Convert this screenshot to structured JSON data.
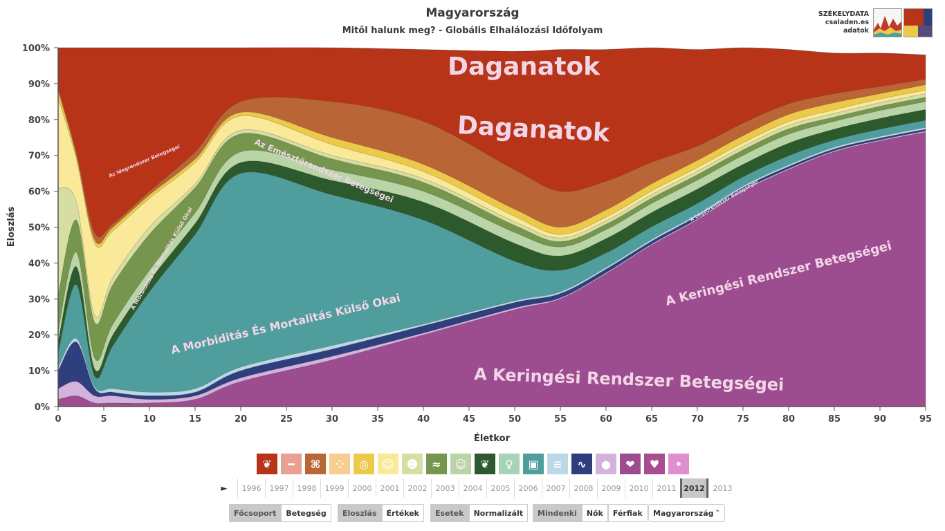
{
  "title": "Magyarország",
  "subtitle": "Mitől halunk meg? - Globális Elhalálozási Időfolyam",
  "logo": {
    "line1": "SZÉKELYDATA",
    "line2": "csaladen.es",
    "line3": "adatok"
  },
  "chart_data": {
    "type": "area",
    "stacked": true,
    "normalized": true,
    "xlabel": "Életkor",
    "ylabel": "Eloszlás",
    "xlim": [
      0,
      95
    ],
    "ylim": [
      0,
      100
    ],
    "xticks": [
      0,
      5,
      10,
      15,
      20,
      25,
      30,
      35,
      40,
      45,
      50,
      55,
      60,
      65,
      70,
      75,
      80,
      85,
      90,
      95
    ],
    "yticks": [
      "0%",
      "10%",
      "20%",
      "30%",
      "40%",
      "50%",
      "60%",
      "70%",
      "80%",
      "90%",
      "100%"
    ],
    "x": [
      0,
      2,
      4,
      6,
      10,
      15,
      20,
      30,
      40,
      50,
      55,
      60,
      65,
      70,
      75,
      80,
      85,
      90,
      95
    ],
    "series": [
      {
        "color": "#9c4d8f",
        "values": [
          2,
          3,
          1,
          1,
          1,
          2,
          7,
          13,
          20,
          27,
          30,
          37,
          45,
          52,
          60,
          66,
          71,
          74,
          76.5
        ]
      },
      {
        "color": "#d3b3dc",
        "values": [
          3,
          4,
          2,
          2,
          1,
          1,
          1,
          1,
          0.5,
          0.5,
          0.3,
          0.3,
          0.3,
          0.3,
          0.3,
          0.3,
          0.3,
          0.3,
          0.3
        ]
      },
      {
        "color": "#2f3e7c",
        "values": [
          5,
          11,
          2,
          1,
          1,
          1,
          2,
          2,
          2,
          1.5,
          1.2,
          1.0,
          0.8,
          0.8,
          0.7,
          0.6,
          0.5,
          0.5,
          0.5
        ]
      },
      {
        "color": "#bcd8e6",
        "values": [
          1,
          1,
          0.5,
          1,
          1,
          1,
          1,
          1,
          0.5,
          0.5,
          0.5,
          0.5,
          0.5,
          0.5,
          0.5,
          0.5,
          0.5,
          0.5,
          0.5
        ]
      },
      {
        "color": "#4f9e9d",
        "values": [
          4,
          15,
          3,
          12,
          28,
          43,
          54,
          42,
          29,
          11,
          6,
          4,
          3.5,
          3,
          2.5,
          2.5,
          2,
          2,
          2
        ]
      },
      {
        "color": "#2d5a2c",
        "values": [
          3,
          5,
          2,
          3,
          3,
          3,
          3,
          4,
          5,
          5,
          4,
          4,
          4,
          4,
          3.5,
          3.5,
          3,
          3,
          3
        ]
      },
      {
        "color": "#b9d4a7",
        "values": [
          3,
          4,
          3,
          3,
          3,
          3,
          3,
          3,
          3,
          3,
          2.5,
          2.5,
          2.5,
          2.5,
          2.5,
          2.5,
          2.2,
          2.2,
          2.2
        ]
      },
      {
        "color": "#75964c",
        "values": [
          10,
          9,
          10,
          11,
          10,
          7,
          5,
          3,
          2.5,
          2,
          1.5,
          1.5,
          1.5,
          1.5,
          1.5,
          1.5,
          1.2,
          1.2,
          1.2
        ]
      },
      {
        "color": "#d6dea3",
        "values": [
          30,
          5,
          2,
          2,
          2,
          1,
          1,
          1,
          1,
          1,
          1,
          1,
          1,
          1,
          1,
          1,
          1,
          1,
          1
        ]
      },
      {
        "color": "#fbe99a",
        "values": [
          25,
          12,
          20,
          13,
          8,
          6,
          4,
          3,
          2,
          1.5,
          1,
          1,
          1,
          1,
          1,
          1,
          1,
          1,
          1
        ]
      },
      {
        "color": "#edc94a",
        "values": [
          2,
          1,
          1,
          1,
          1,
          1,
          1,
          2,
          2,
          2,
          2,
          2,
          2,
          2,
          2,
          2,
          2,
          1.5,
          1.5
        ]
      },
      {
        "color": "#ba6535",
        "values": [
          1,
          1,
          2,
          1,
          1,
          2,
          3,
          10,
          12,
          11,
          10,
          8,
          6,
          4,
          3.5,
          3,
          2.5,
          2,
          1.5
        ]
      },
      {
        "color": "#b83418",
        "values": [
          11,
          29,
          51.5,
          49,
          40,
          29,
          15,
          15,
          20,
          33,
          39.5,
          36.7,
          31.9,
          26.9,
          21.0,
          15.1,
          11.3,
          9.3,
          6.8
        ]
      },
      {
        "color": "#e8a0a0",
        "values": [
          0,
          0,
          0,
          0,
          0,
          0,
          0.5,
          0,
          0,
          0,
          0,
          0,
          0,
          0,
          0,
          0,
          0,
          0,
          0
        ]
      }
    ],
    "annotations": [
      {
        "text": "Daganatok",
        "x": 51,
        "y": 92.5,
        "size": 36,
        "angle": 0
      },
      {
        "text": "Daganatok",
        "x": 52,
        "y": 75,
        "size": 36,
        "angle": 3
      },
      {
        "text": "A Keringési Rendszer Betegségei",
        "x": 62.5,
        "y": 6,
        "size": 24,
        "angle": 2
      },
      {
        "text": "A Keringési Rendszer Betegségei",
        "x": 79,
        "y": 36,
        "size": 18,
        "angle": -14
      },
      {
        "text": "A Morbiditás És Mortalitás Külső Okai",
        "x": 25,
        "y": 22,
        "size": 16,
        "angle": -13
      },
      {
        "text": "Az Emésztőrendszer Betegségei",
        "x": 29,
        "y": 65,
        "size": 12,
        "angle": 23
      },
      {
        "text": "A Morbiditás És Mortalitás Külső Okai",
        "x": 11.5,
        "y": 41,
        "size": 8,
        "angle": -60
      },
      {
        "text": "Az Idegrendszer Betegségei",
        "x": 9.5,
        "y": 68,
        "size": 7,
        "angle": -23
      },
      {
        "text": "A Légzőrendszer Betegségei",
        "x": 73,
        "y": 57,
        "size": 7,
        "angle": -30
      }
    ]
  },
  "categories": [
    {
      "name": "ribbon-icon",
      "color": "#b83418"
    },
    {
      "name": "bone-icon",
      "color": "#e8a090"
    },
    {
      "name": "digestive-icon",
      "color": "#ba6535"
    },
    {
      "name": "cells-icon",
      "color": "#f7cd92"
    },
    {
      "name": "lollipop-icon",
      "color": "#edc94a"
    },
    {
      "name": "head-icon",
      "color": "#fbe99a"
    },
    {
      "name": "baby-icon",
      "color": "#d6dea3"
    },
    {
      "name": "chromosome-icon",
      "color": "#75964c"
    },
    {
      "name": "smiley-icon",
      "color": "#b9d4a7"
    },
    {
      "name": "lungs-icon",
      "color": "#2d5a2c"
    },
    {
      "name": "pregnancy-icon",
      "color": "#a6d4b6"
    },
    {
      "name": "car-icon",
      "color": "#4f9e9d"
    },
    {
      "name": "list-icon",
      "color": "#bcd8e6"
    },
    {
      "name": "bacteria-icon",
      "color": "#2f3e7c"
    },
    {
      "name": "drop-icon",
      "color": "#d3b3dc"
    },
    {
      "name": "kidneys-icon",
      "color": "#9c4d8f"
    },
    {
      "name": "heart-icon",
      "color": "#a84d8f"
    },
    {
      "name": "ear-icon",
      "color": "#e08ed0"
    }
  ],
  "play_symbol": "►",
  "years": [
    "1996",
    "1997",
    "1998",
    "1999",
    "2000",
    "2001",
    "2002",
    "2003",
    "2004",
    "2005",
    "2006",
    "2007",
    "2008",
    "2009",
    "2010",
    "2011",
    "2012",
    "2013"
  ],
  "selected_year": "2012",
  "controls": {
    "group1": [
      "Főcsoport",
      "Betegség"
    ],
    "group2": [
      "Eloszlás",
      "Értékek"
    ],
    "group3": [
      "Esetek",
      "Normalizált"
    ],
    "group4": [
      "Mindenki",
      "Nők",
      "Férfiak"
    ],
    "country": "Magyarország"
  }
}
